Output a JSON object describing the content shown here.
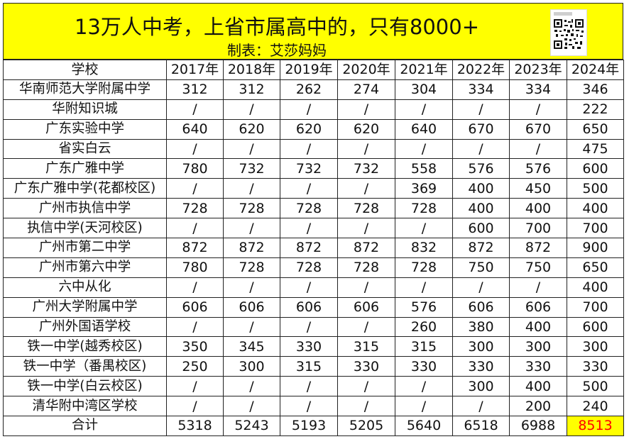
{
  "title": "13万人中考，上省市属高中的，只有8000+",
  "subtitle": "制表：艾莎妈妈",
  "qr_code": {
    "icon": "qr-code-icon"
  },
  "table": {
    "header": [
      "学校",
      "2017年",
      "2018年",
      "2019年",
      "2020年",
      "2021年",
      "2022年",
      "2023年",
      "2024年"
    ],
    "rows": [
      [
        "华南师范大学附属中学",
        "312",
        "312",
        "262",
        "274",
        "304",
        "334",
        "334",
        "346"
      ],
      [
        "华附知识城",
        "/",
        "/",
        "/",
        "/",
        "/",
        "/",
        "/",
        "222"
      ],
      [
        "广东实验中学",
        "640",
        "620",
        "620",
        "620",
        "640",
        "670",
        "670",
        "650"
      ],
      [
        "省实白云",
        "/",
        "/",
        "/",
        "/",
        "/",
        "/",
        "/",
        "475"
      ],
      [
        "广东广雅中学",
        "780",
        "732",
        "732",
        "732",
        "558",
        "576",
        "576",
        "600"
      ],
      [
        "广东广雅中学(花都校区)",
        "/",
        "/",
        "/",
        "/",
        "369",
        "400",
        "450",
        "500"
      ],
      [
        "广州市执信中学",
        "728",
        "728",
        "728",
        "728",
        "728",
        "400",
        "400",
        "400"
      ],
      [
        "执信中学(天河校区)",
        "/",
        "/",
        "/",
        "/",
        "/",
        "600",
        "700",
        "700"
      ],
      [
        "广州市第二中学",
        "872",
        "872",
        "872",
        "872",
        "832",
        "872",
        "872",
        "900"
      ],
      [
        "广州市第六中学",
        "780",
        "728",
        "728",
        "728",
        "728",
        "750",
        "750",
        "650"
      ],
      [
        "六中从化",
        "/",
        "/",
        "/",
        "/",
        "/",
        "/",
        "/",
        "400"
      ],
      [
        "广州大学附属中学",
        "606",
        "606",
        "606",
        "606",
        "576",
        "606",
        "606",
        "700"
      ],
      [
        "广州外国语学校",
        "/",
        "/",
        "/",
        "/",
        "260",
        "380",
        "400",
        "600"
      ],
      [
        "铁一中学(越秀校区)",
        "350",
        "345",
        "330",
        "315",
        "315",
        "300",
        "300",
        "300"
      ],
      [
        "铁一中学（番禺校区)",
        "250",
        "300",
        "315",
        "330",
        "330",
        "330",
        "330",
        "330"
      ],
      [
        "铁一中学(白云校区)",
        "/",
        "/",
        "/",
        "/",
        "/",
        "300",
        "400",
        "500"
      ],
      [
        "清华附中湾区学校",
        "/",
        "/",
        "/",
        "/",
        "/",
        "/",
        "200",
        "240"
      ]
    ],
    "total": [
      "合计",
      "5318",
      "5243",
      "5193",
      "5205",
      "5640",
      "6518",
      "6988",
      "8513"
    ]
  },
  "colors": {
    "title_bg": "#ffff00",
    "highlight_text": "#ff0000",
    "highlight_bg": "#ffff00"
  }
}
